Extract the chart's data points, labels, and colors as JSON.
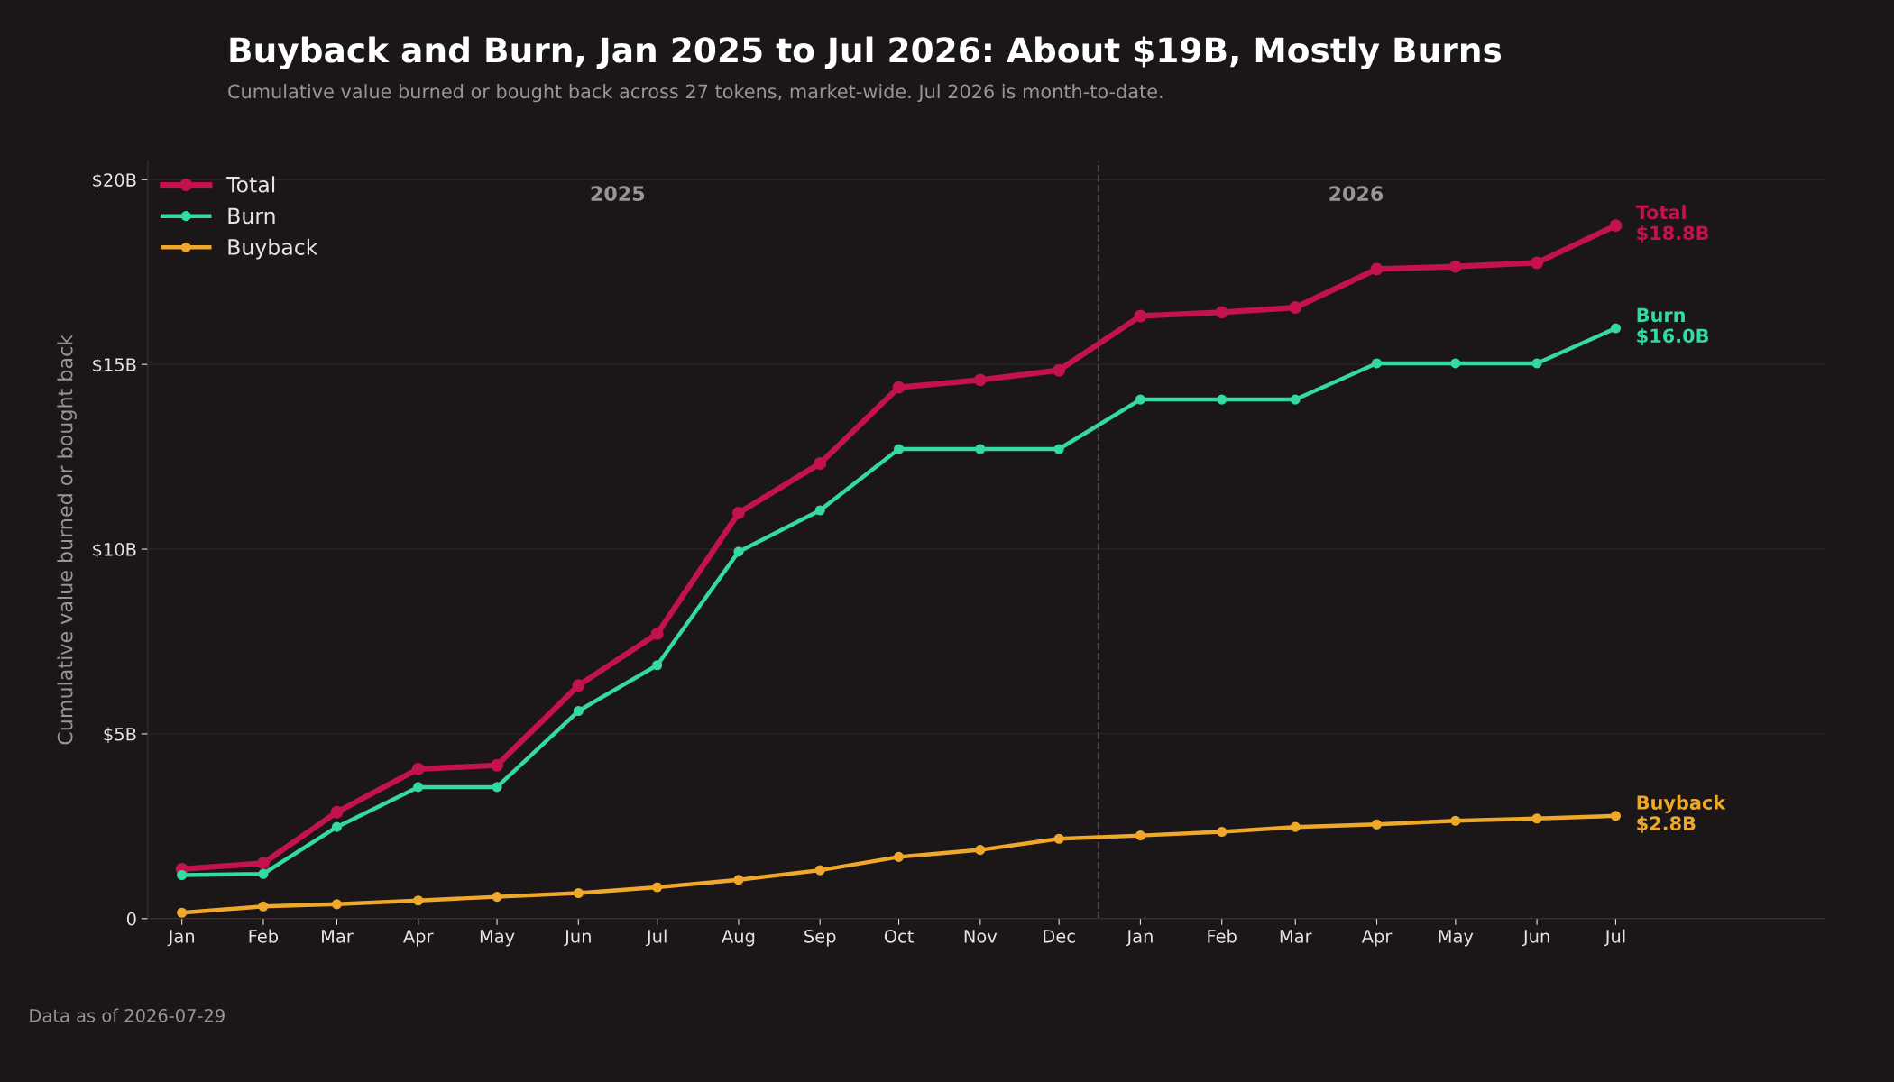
{
  "chart_data": {
    "type": "line",
    "title": "Buyback and Burn, Jan 2025 to Jul 2026: About $19B, Mostly Burns",
    "subtitle": "Cumulative value burned or bought back across 27 tokens, market-wide. Jul 2026 is month-to-date.",
    "ylabel": "Cumulative value burned or bought back",
    "x": [
      "2025-01",
      "2025-02",
      "2025-03",
      "2025-04",
      "2025-05",
      "2025-06",
      "2025-07",
      "2025-08",
      "2025-09",
      "2025-10",
      "2025-11",
      "2025-12",
      "2026-01",
      "2026-02",
      "2026-03",
      "2026-04",
      "2026-05",
      "2026-06",
      "2026-07"
    ],
    "series": [
      {
        "name": "Total",
        "color": "#c4124f",
        "values": [
          1.34,
          1.5,
          2.88,
          4.05,
          4.15,
          6.31,
          7.71,
          10.98,
          12.32,
          14.38,
          14.58,
          14.84,
          16.31,
          16.41,
          16.54,
          17.58,
          17.65,
          17.75,
          18.76
        ],
        "value_labels": [
          null,
          null,
          null,
          null,
          null,
          null,
          null,
          null,
          null,
          null,
          null,
          null,
          null,
          null,
          null,
          null,
          null,
          null,
          "$18.8B"
        ]
      },
      {
        "name": "Burn",
        "color": "#34d9a5",
        "values": [
          1.18,
          1.21,
          2.48,
          3.56,
          3.56,
          5.62,
          6.86,
          9.93,
          11.05,
          12.71,
          12.71,
          12.71,
          14.05,
          14.05,
          14.05,
          15.03,
          15.03,
          15.03,
          15.98
        ],
        "value_labels": [
          null,
          null,
          null,
          null,
          null,
          null,
          null,
          null,
          null,
          null,
          null,
          null,
          null,
          null,
          null,
          null,
          null,
          null,
          "$16.0B"
        ]
      },
      {
        "name": "Buyback",
        "color": "#f0a82a",
        "values": [
          0.16,
          0.33,
          0.39,
          0.49,
          0.59,
          0.69,
          0.85,
          1.05,
          1.31,
          1.67,
          1.86,
          2.16,
          2.25,
          2.35,
          2.48,
          2.55,
          2.65,
          2.71,
          2.78
        ],
        "value_labels": [
          null,
          null,
          null,
          null,
          null,
          null,
          null,
          null,
          null,
          null,
          null,
          null,
          null,
          null,
          null,
          null,
          null,
          null,
          "$2.8B"
        ]
      }
    ],
    "xlim": [
      "2024-12-19",
      "2026-09-19"
    ],
    "xticks": [
      {
        "value": "2025-01",
        "label": "Jan"
      },
      {
        "value": "2025-02",
        "label": "Feb"
      },
      {
        "value": "2025-03",
        "label": "Mar"
      },
      {
        "value": "2025-04",
        "label": "Apr"
      },
      {
        "value": "2025-05",
        "label": "May"
      },
      {
        "value": "2025-06",
        "label": "Jun"
      },
      {
        "value": "2025-07",
        "label": "Jul"
      },
      {
        "value": "2025-08",
        "label": "Aug"
      },
      {
        "value": "2025-09",
        "label": "Sep"
      },
      {
        "value": "2025-10",
        "label": "Oct"
      },
      {
        "value": "2025-11",
        "label": "Nov"
      },
      {
        "value": "2025-12",
        "label": "Dec"
      },
      {
        "value": "2026-01",
        "label": "Jan"
      },
      {
        "value": "2026-02",
        "label": "Feb"
      },
      {
        "value": "2026-03",
        "label": "Mar"
      },
      {
        "value": "2026-04",
        "label": "Apr"
      },
      {
        "value": "2026-05",
        "label": "May"
      },
      {
        "value": "2026-06",
        "label": "Jun"
      },
      {
        "value": "2026-07",
        "label": "Jul"
      }
    ],
    "ylim": [
      0,
      20.5
    ],
    "yticks": [
      0,
      {
        "value": 5,
        "label": "$5B"
      },
      {
        "value": 10,
        "label": "$10B"
      },
      {
        "value": 15,
        "label": "$15B"
      },
      {
        "value": 20,
        "label": "$20B"
      }
    ],
    "ref_lines": [
      {
        "axis": "x",
        "value": "2025-12-16",
        "color": "#4a4446",
        "line_style": "dashed"
      }
    ],
    "annotations": [
      "2025",
      "2026",
      "Data as of 2026-07-29"
    ],
    "grid": "y",
    "legend": "top left",
    "marker": "circle",
    "line_style": "solid"
  }
}
